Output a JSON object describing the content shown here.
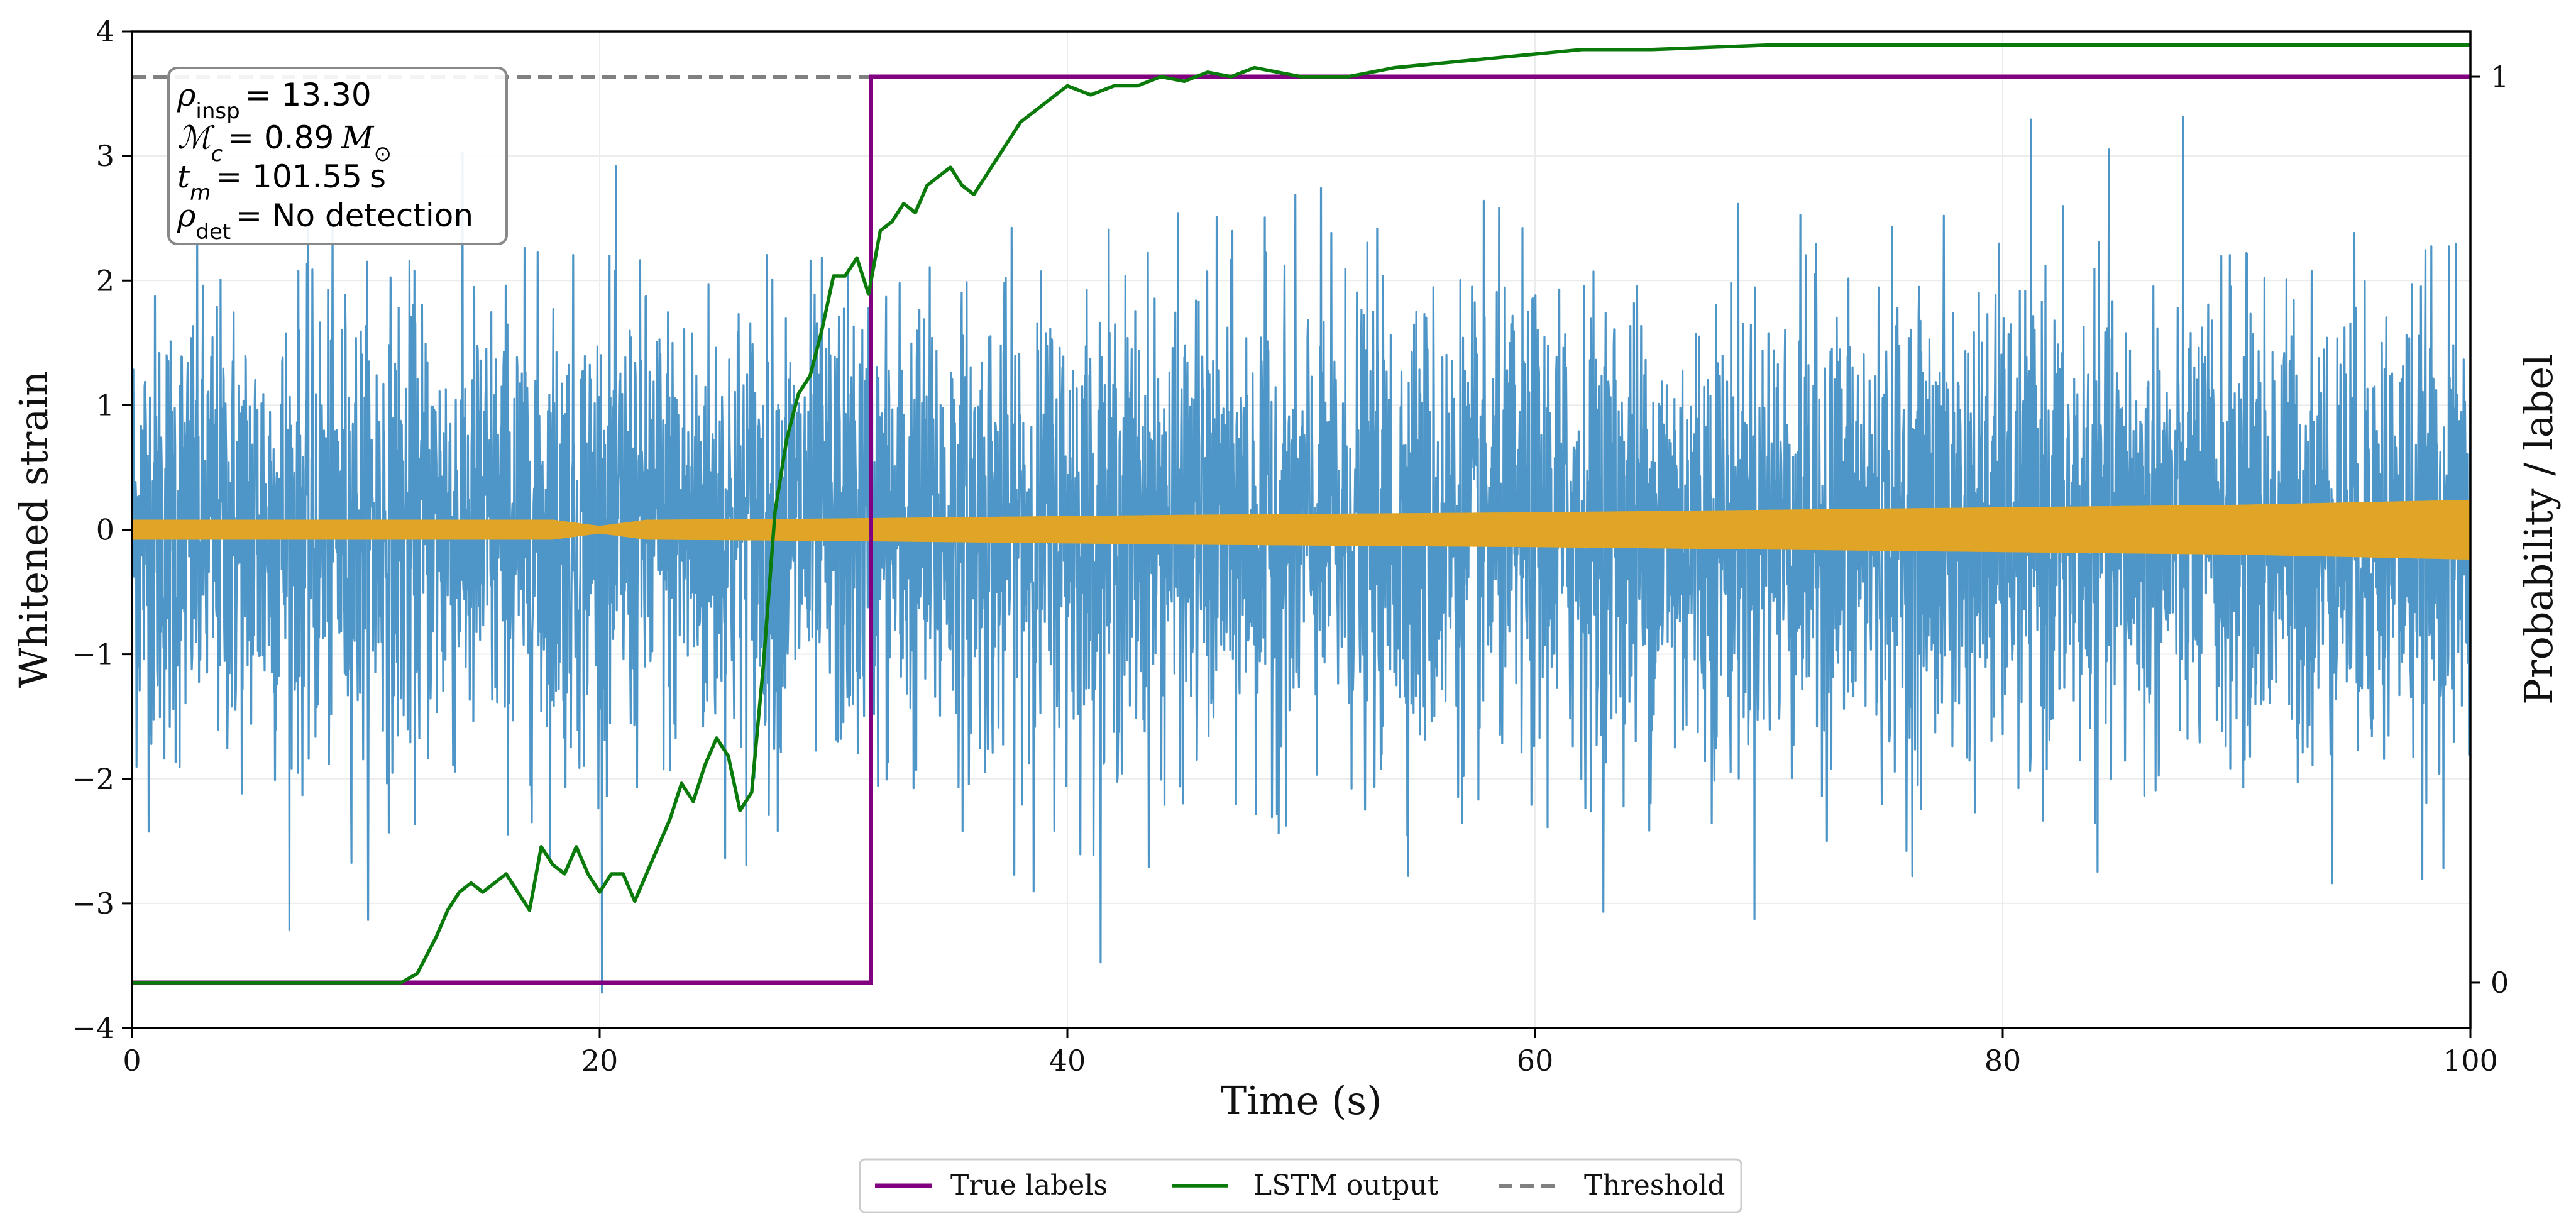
{
  "chart_data": {
    "type": "line",
    "xlabel": "Time (s)",
    "ylabel_left": "Whitened strain",
    "ylabel_right": "Probability / label",
    "xlim": [
      0,
      100
    ],
    "ylim_left": [
      -4,
      4
    ],
    "ylim_right": [
      -0.05,
      1.05
    ],
    "x_ticks": [
      0,
      20,
      40,
      60,
      80,
      100
    ],
    "x_tick_labels": [
      "0",
      "20",
      "40",
      "60",
      "80",
      "100"
    ],
    "y_left_ticks": [
      4,
      3,
      2,
      1,
      0,
      -1,
      -2,
      -3,
      -4
    ],
    "y_left_tick_labels": [
      "4",
      "3",
      "2",
      "1",
      "0",
      "−1",
      "−2",
      "−3",
      "−4"
    ],
    "y_right_ticks": [
      1,
      0
    ],
    "y_right_tick_labels": [
      "1",
      "0"
    ],
    "grid": true,
    "colors": {
      "strain": "#3b8bc2",
      "template": "#e0a526",
      "true_labels": "#800080",
      "lstm": "#0a7a0a",
      "threshold": "#808080"
    },
    "annotation_box": {
      "rho_insp_value": "13.30",
      "chirp_mass_value": "0.89",
      "t_m_value": "101.55",
      "t_m_unit": "s",
      "rho_det_value": "No detection"
    },
    "series": [
      {
        "name": "True labels",
        "axis": "right",
        "x": [
          0,
          31.6,
          31.6,
          100
        ],
        "y": [
          0,
          0,
          1,
          1
        ]
      },
      {
        "name": "LSTM output",
        "axis": "right",
        "x": [
          0,
          11.5,
          12.2,
          13,
          13.5,
          14,
          14.5,
          15,
          15.5,
          16,
          16.5,
          17,
          17.5,
          18,
          18.5,
          19,
          19.5,
          20,
          20.5,
          21,
          21.5,
          22,
          22.5,
          23,
          23.5,
          24,
          24.5,
          25,
          25.5,
          26,
          26.5,
          27,
          27.5,
          28,
          28.5,
          29,
          29.5,
          30,
          30.5,
          31,
          31.5,
          32,
          32.5,
          33,
          33.5,
          34,
          34.5,
          35,
          35.5,
          36,
          36.5,
          37,
          37.5,
          38,
          39,
          40,
          41,
          42,
          43,
          44,
          45,
          46,
          47,
          48,
          49,
          50,
          52,
          54,
          56,
          58,
          60,
          62,
          65,
          70,
          80,
          90,
          100
        ],
        "y": [
          0,
          0,
          0.01,
          0.05,
          0.08,
          0.1,
          0.11,
          0.1,
          0.11,
          0.12,
          0.1,
          0.08,
          0.15,
          0.13,
          0.12,
          0.15,
          0.12,
          0.1,
          0.12,
          0.12,
          0.09,
          0.12,
          0.15,
          0.18,
          0.22,
          0.2,
          0.24,
          0.27,
          0.25,
          0.19,
          0.21,
          0.35,
          0.52,
          0.6,
          0.65,
          0.67,
          0.72,
          0.78,
          0.78,
          0.8,
          0.76,
          0.83,
          0.84,
          0.86,
          0.85,
          0.88,
          0.89,
          0.9,
          0.88,
          0.87,
          0.89,
          0.91,
          0.93,
          0.95,
          0.97,
          0.99,
          0.98,
          0.99,
          0.99,
          1.0,
          0.995,
          1.005,
          1.0,
          1.01,
          1.005,
          1.0,
          1.0,
          1.01,
          1.015,
          1.02,
          1.025,
          1.03,
          1.03,
          1.035,
          1.035,
          1.035,
          1.035
        ]
      },
      {
        "name": "Threshold",
        "axis": "right",
        "x": [
          0,
          100
        ],
        "y": [
          1,
          1
        ]
      },
      {
        "name": "Whitened strain",
        "axis": "left",
        "description_free": true,
        "amplitude_envelope": {
          "x": [
            0,
            100
          ],
          "y": [
            2.2,
            2.2
          ]
        }
      },
      {
        "name": "Template",
        "axis": "left",
        "amplitude_envelope": {
          "x": [
            0,
            18,
            20,
            22,
            30,
            45,
            60,
            75,
            90,
            100
          ],
          "y": [
            0.08,
            0.08,
            0.03,
            0.08,
            0.09,
            0.12,
            0.14,
            0.17,
            0.2,
            0.24
          ]
        }
      }
    ],
    "legend": [
      "True labels",
      "LSTM output",
      "Threshold"
    ],
    "legend_position": "bottom-center"
  }
}
